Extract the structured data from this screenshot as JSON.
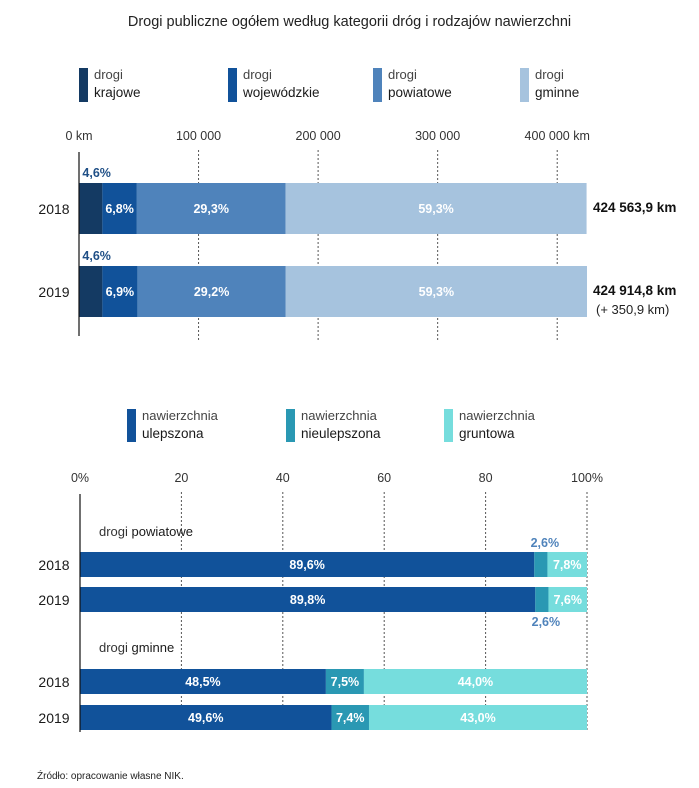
{
  "chart_data": [
    {
      "type": "bar",
      "orientation": "horizontal",
      "stacked": true,
      "title": "Drogi publiczne ogółem według kategorii dróg i rodzajów nawierzchni",
      "legend": [
        {
          "line1": "drogi",
          "line2": "krajowe",
          "color": "#143a63"
        },
        {
          "line1": "drogi",
          "line2": "wojewódzkie",
          "color": "#11529a"
        },
        {
          "line1": "drogi",
          "line2": "powiatowe",
          "color": "#4f83bb"
        },
        {
          "line1": "drogi",
          "line2": "gminne",
          "color": "#a6c3de"
        }
      ],
      "legend_position": "top",
      "x_ticks": [
        "0 km",
        "100 000",
        "200 000",
        "300 000",
        "400 000 km"
      ],
      "x_tick_values": [
        0,
        100000,
        200000,
        300000,
        400000
      ],
      "xlim": [
        0,
        424914.8
      ],
      "grid": true,
      "categories": [
        "2018",
        "2019"
      ],
      "series": [
        {
          "name": "drogi krajowe",
          "values": [
            4.6,
            4.6
          ],
          "labels": [
            "4,6%",
            "4,6%"
          ]
        },
        {
          "name": "drogi wojewódzkie",
          "values": [
            6.8,
            6.9
          ],
          "labels": [
            "6,8%",
            "6,9%"
          ]
        },
        {
          "name": "drogi powiatowe",
          "values": [
            29.3,
            29.2
          ],
          "labels": [
            "29,3%",
            "29,2%"
          ]
        },
        {
          "name": "drogi gminne",
          "values": [
            59.3,
            59.3
          ],
          "labels": [
            "59,3%",
            "59,3%"
          ]
        }
      ],
      "totals": [
        {
          "label": "424 563,9 km",
          "value": 424563.9,
          "note": ""
        },
        {
          "label": "424 914,8 km",
          "value": 424914.8,
          "note": "(+ 350,9 km)"
        }
      ]
    },
    {
      "type": "bar",
      "orientation": "horizontal",
      "stacked": true,
      "legend": [
        {
          "line1": "nawierzchnia",
          "line2": "ulepszona",
          "color": "#11529a"
        },
        {
          "line1": "nawierzchnia",
          "line2": "nieulepszona",
          "color": "#2a98b3"
        },
        {
          "line1": "nawierzchnia",
          "line2": "gruntowa",
          "color": "#76dddd"
        }
      ],
      "legend_position": "top",
      "x_ticks": [
        "0%",
        "20",
        "40",
        "60",
        "80",
        "100%"
      ],
      "x_tick_values": [
        0,
        20,
        40,
        60,
        80,
        100
      ],
      "xlim": [
        0,
        100
      ],
      "grid": true,
      "groups": [
        {
          "label_l1": "drogi",
          "label_l2": "powiatowe",
          "categories": [
            "2018",
            "2019"
          ],
          "series": [
            {
              "name": "nawierzchnia ulepszona",
              "values": [
                89.6,
                89.8
              ],
              "labels": [
                "89,6%",
                "89,8%"
              ]
            },
            {
              "name": "nawierzchnia nieulepszona",
              "values": [
                2.6,
                2.6
              ],
              "labels": [
                "2,6%",
                "2,6%"
              ]
            },
            {
              "name": "nawierzchnia gruntowa",
              "values": [
                7.8,
                7.6
              ],
              "labels": [
                "7,8%",
                "7,6%"
              ]
            }
          ]
        },
        {
          "label_l1": "drogi",
          "label_l2": "gminne",
          "categories": [
            "2018",
            "2019"
          ],
          "series": [
            {
              "name": "nawierzchnia ulepszona",
              "values": [
                48.5,
                49.6
              ],
              "labels": [
                "48,5%",
                "49,6%"
              ]
            },
            {
              "name": "nawierzchnia nieulepszona",
              "values": [
                7.5,
                7.4
              ],
              "labels": [
                "7,5%",
                "7,4%"
              ]
            },
            {
              "name": "nawierzchnia gruntowa",
              "values": [
                44.0,
                43.0
              ],
              "labels": [
                "44,0%",
                "43,0%"
              ]
            }
          ]
        }
      ]
    }
  ],
  "footer": {
    "source": "Źródło: opracowanie własne NIK."
  },
  "colors": {
    "label_outside": "#11529a",
    "label_outside_light": "#4f83bb",
    "grid": "#555555",
    "axis": "#111111"
  }
}
